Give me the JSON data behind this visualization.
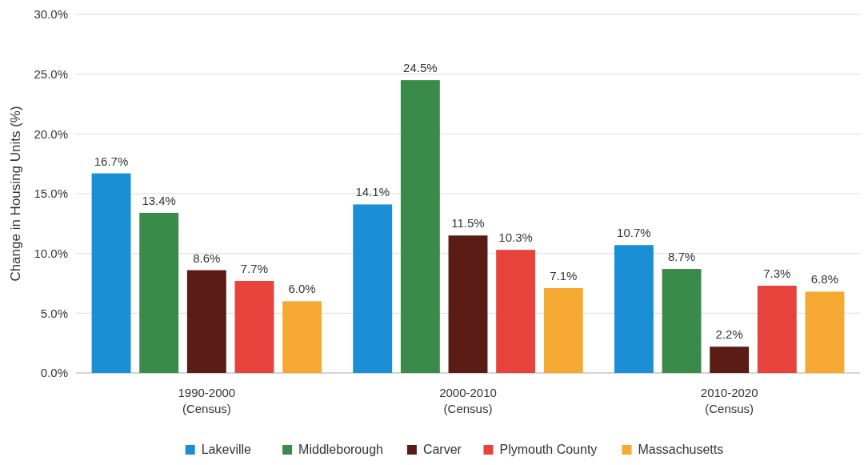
{
  "chart_data": {
    "type": "bar",
    "ylabel": "Change in Housing Units (%)",
    "categories": [
      "1990-2000\n(Census)",
      "2000-2010\n(Census)",
      "2010-2020\n(Census)"
    ],
    "series": [
      {
        "name": "Lakeville",
        "color": "#1a8fd6",
        "values": [
          16.7,
          14.1,
          10.7
        ],
        "value_labels": [
          "16.7%",
          "14.1%",
          "10.7%"
        ]
      },
      {
        "name": "Middleborough",
        "color": "#3a8a4a",
        "values": [
          13.4,
          24.5,
          8.7
        ],
        "value_labels": [
          "13.4%",
          "24.5%",
          "8.7%"
        ]
      },
      {
        "name": "Carver",
        "color": "#5c1c16",
        "values": [
          8.6,
          11.5,
          2.2
        ],
        "value_labels": [
          "8.6%",
          "11.5%",
          "2.2%"
        ]
      },
      {
        "name": "Plymouth County",
        "color": "#e8423c",
        "values": [
          7.7,
          10.3,
          7.3
        ],
        "value_labels": [
          "7.7%",
          "10.3%",
          "7.3%"
        ]
      },
      {
        "name": "Massachusetts",
        "color": "#f5a832",
        "values": [
          6.0,
          7.1,
          6.8
        ],
        "value_labels": [
          "6.0%",
          "7.1%",
          "6.8%"
        ]
      }
    ],
    "ylim": [
      0,
      30
    ],
    "yticks": [
      {
        "value": 0,
        "label": "0.0%"
      },
      {
        "value": 5,
        "label": "5.0%"
      },
      {
        "value": 10,
        "label": "10.0%"
      },
      {
        "value": 15,
        "label": "15.0%"
      },
      {
        "value": 20,
        "label": "20.0%"
      },
      {
        "value": 25,
        "label": "25.0%"
      },
      {
        "value": 30,
        "label": "30.0%"
      }
    ],
    "grid": "y",
    "legend": "bottom"
  }
}
